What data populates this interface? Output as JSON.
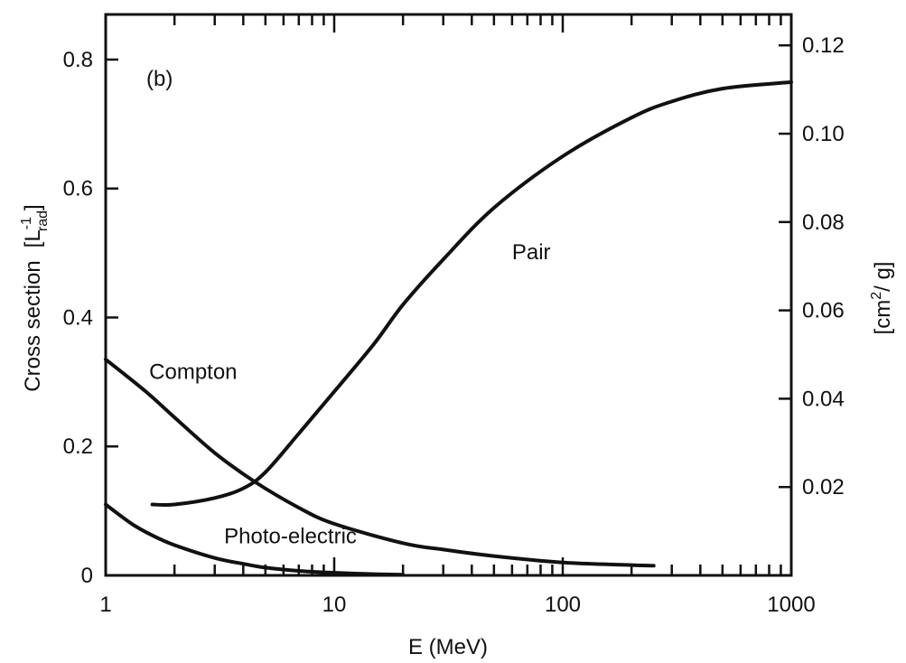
{
  "chart_data": {
    "type": "line",
    "xscale": "log",
    "xlim": [
      1,
      1000
    ],
    "ylim": [
      0,
      0.87
    ],
    "ylim_right": [
      0,
      0.127
    ],
    "xlabel": "E (MeV)",
    "ylabel_left_main": "Cross section",
    "ylabel_left_unit": "[L",
    "ylabel_left_unit_sup": "-1",
    "ylabel_left_unit_sub": "rad",
    "ylabel_left_unit_close": "]",
    "ylabel_right_main": "[cm",
    "ylabel_right_sup": "2",
    "ylabel_right_close": "/ g]",
    "panel_label": "(b)",
    "x_ticks": [
      1,
      10,
      100,
      1000
    ],
    "x_tick_labels": [
      "1",
      "10",
      "100",
      "1000"
    ],
    "y_ticks_left": [
      0,
      0.2,
      0.4,
      0.6,
      0.8
    ],
    "y_tick_labels_left": [
      "0",
      "0.2",
      "0.4",
      "0.6",
      "0.8"
    ],
    "y_ticks_right": [
      0.02,
      0.04,
      0.06,
      0.08,
      0.1,
      0.12
    ],
    "y_tick_labels_right": [
      "0.02",
      "0.04",
      "0.06",
      "0.08",
      "0.10",
      "0.12"
    ],
    "grid": false,
    "series": [
      {
        "name": "Compton",
        "x": [
          1,
          1.5,
          2,
          3,
          4.5,
          7,
          10,
          20,
          30,
          50,
          100,
          200,
          250
        ],
        "y": [
          0.335,
          0.285,
          0.245,
          0.19,
          0.145,
          0.105,
          0.08,
          0.05,
          0.04,
          0.03,
          0.02,
          0.016,
          0.015
        ]
      },
      {
        "name": "Pair",
        "x": [
          1.6,
          2,
          3,
          4,
          5,
          7,
          10,
          15,
          20,
          30,
          50,
          100,
          200,
          300,
          500,
          1000
        ],
        "y": [
          0.11,
          0.11,
          0.12,
          0.135,
          0.16,
          0.22,
          0.285,
          0.36,
          0.42,
          0.49,
          0.57,
          0.65,
          0.71,
          0.735,
          0.755,
          0.765
        ]
      },
      {
        "name": "Photo-electric",
        "x": [
          1,
          1.3,
          1.6,
          2,
          3,
          4,
          5,
          7,
          10,
          15,
          20
        ],
        "y": [
          0.11,
          0.08,
          0.062,
          0.047,
          0.027,
          0.018,
          0.012,
          0.007,
          0.004,
          0.002,
          0.001
        ]
      }
    ],
    "annotations": [
      {
        "text": "Compton",
        "x": 1.55,
        "y": 0.305
      },
      {
        "text": "Pair",
        "x": 60,
        "y": 0.49
      },
      {
        "text": "Photo-electric",
        "x": 3.3,
        "y": 0.05
      }
    ]
  }
}
